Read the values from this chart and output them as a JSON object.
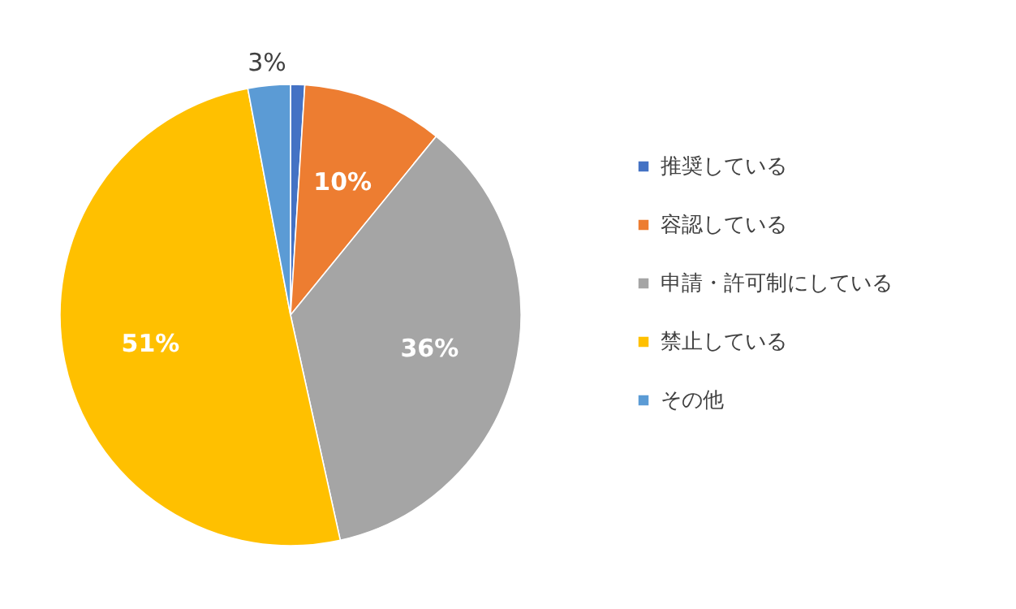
{
  "chart_data": {
    "type": "pie",
    "categories": [
      "推奨している",
      "容認している",
      "申請・許可制にしている",
      "禁止している",
      "その他"
    ],
    "values": [
      1,
      10,
      36,
      51,
      3
    ],
    "colors": [
      "#4472c4",
      "#ed7d31",
      "#a5a5a5",
      "#ffc000",
      "#5b9bd5"
    ],
    "value_labels": [
      null,
      "10%",
      "36%",
      "51%",
      "3%"
    ],
    "legend": "right"
  }
}
